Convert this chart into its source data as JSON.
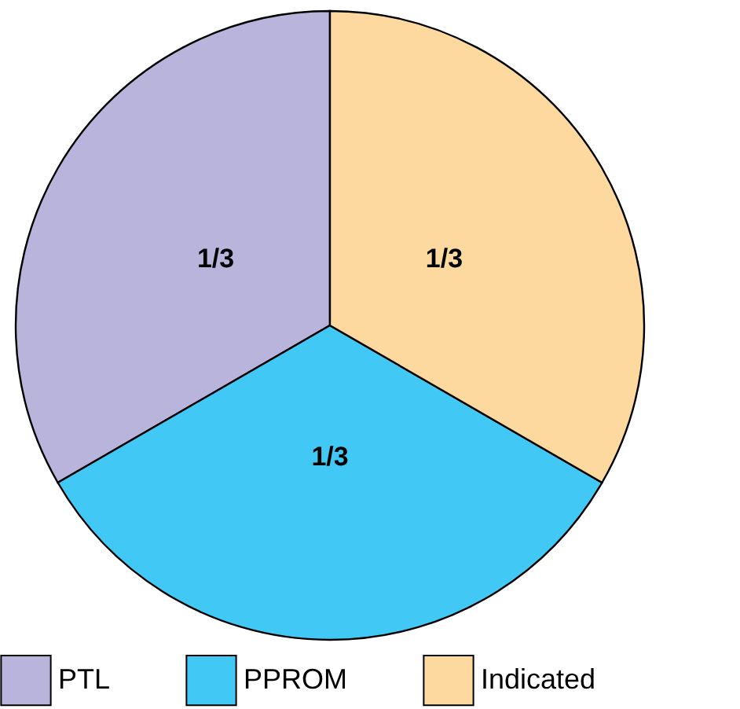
{
  "chart_data": {
    "type": "pie",
    "categories": [
      "PTL",
      "PPROM",
      "Indicated"
    ],
    "values": [
      0.3333,
      0.3333,
      0.3333
    ],
    "colors": [
      "#b8b4dc",
      "#42c8f4",
      "#fdd9a0"
    ],
    "value_labels": [
      "1/3",
      "1/3",
      "1/3"
    ],
    "legend": "bottom"
  }
}
